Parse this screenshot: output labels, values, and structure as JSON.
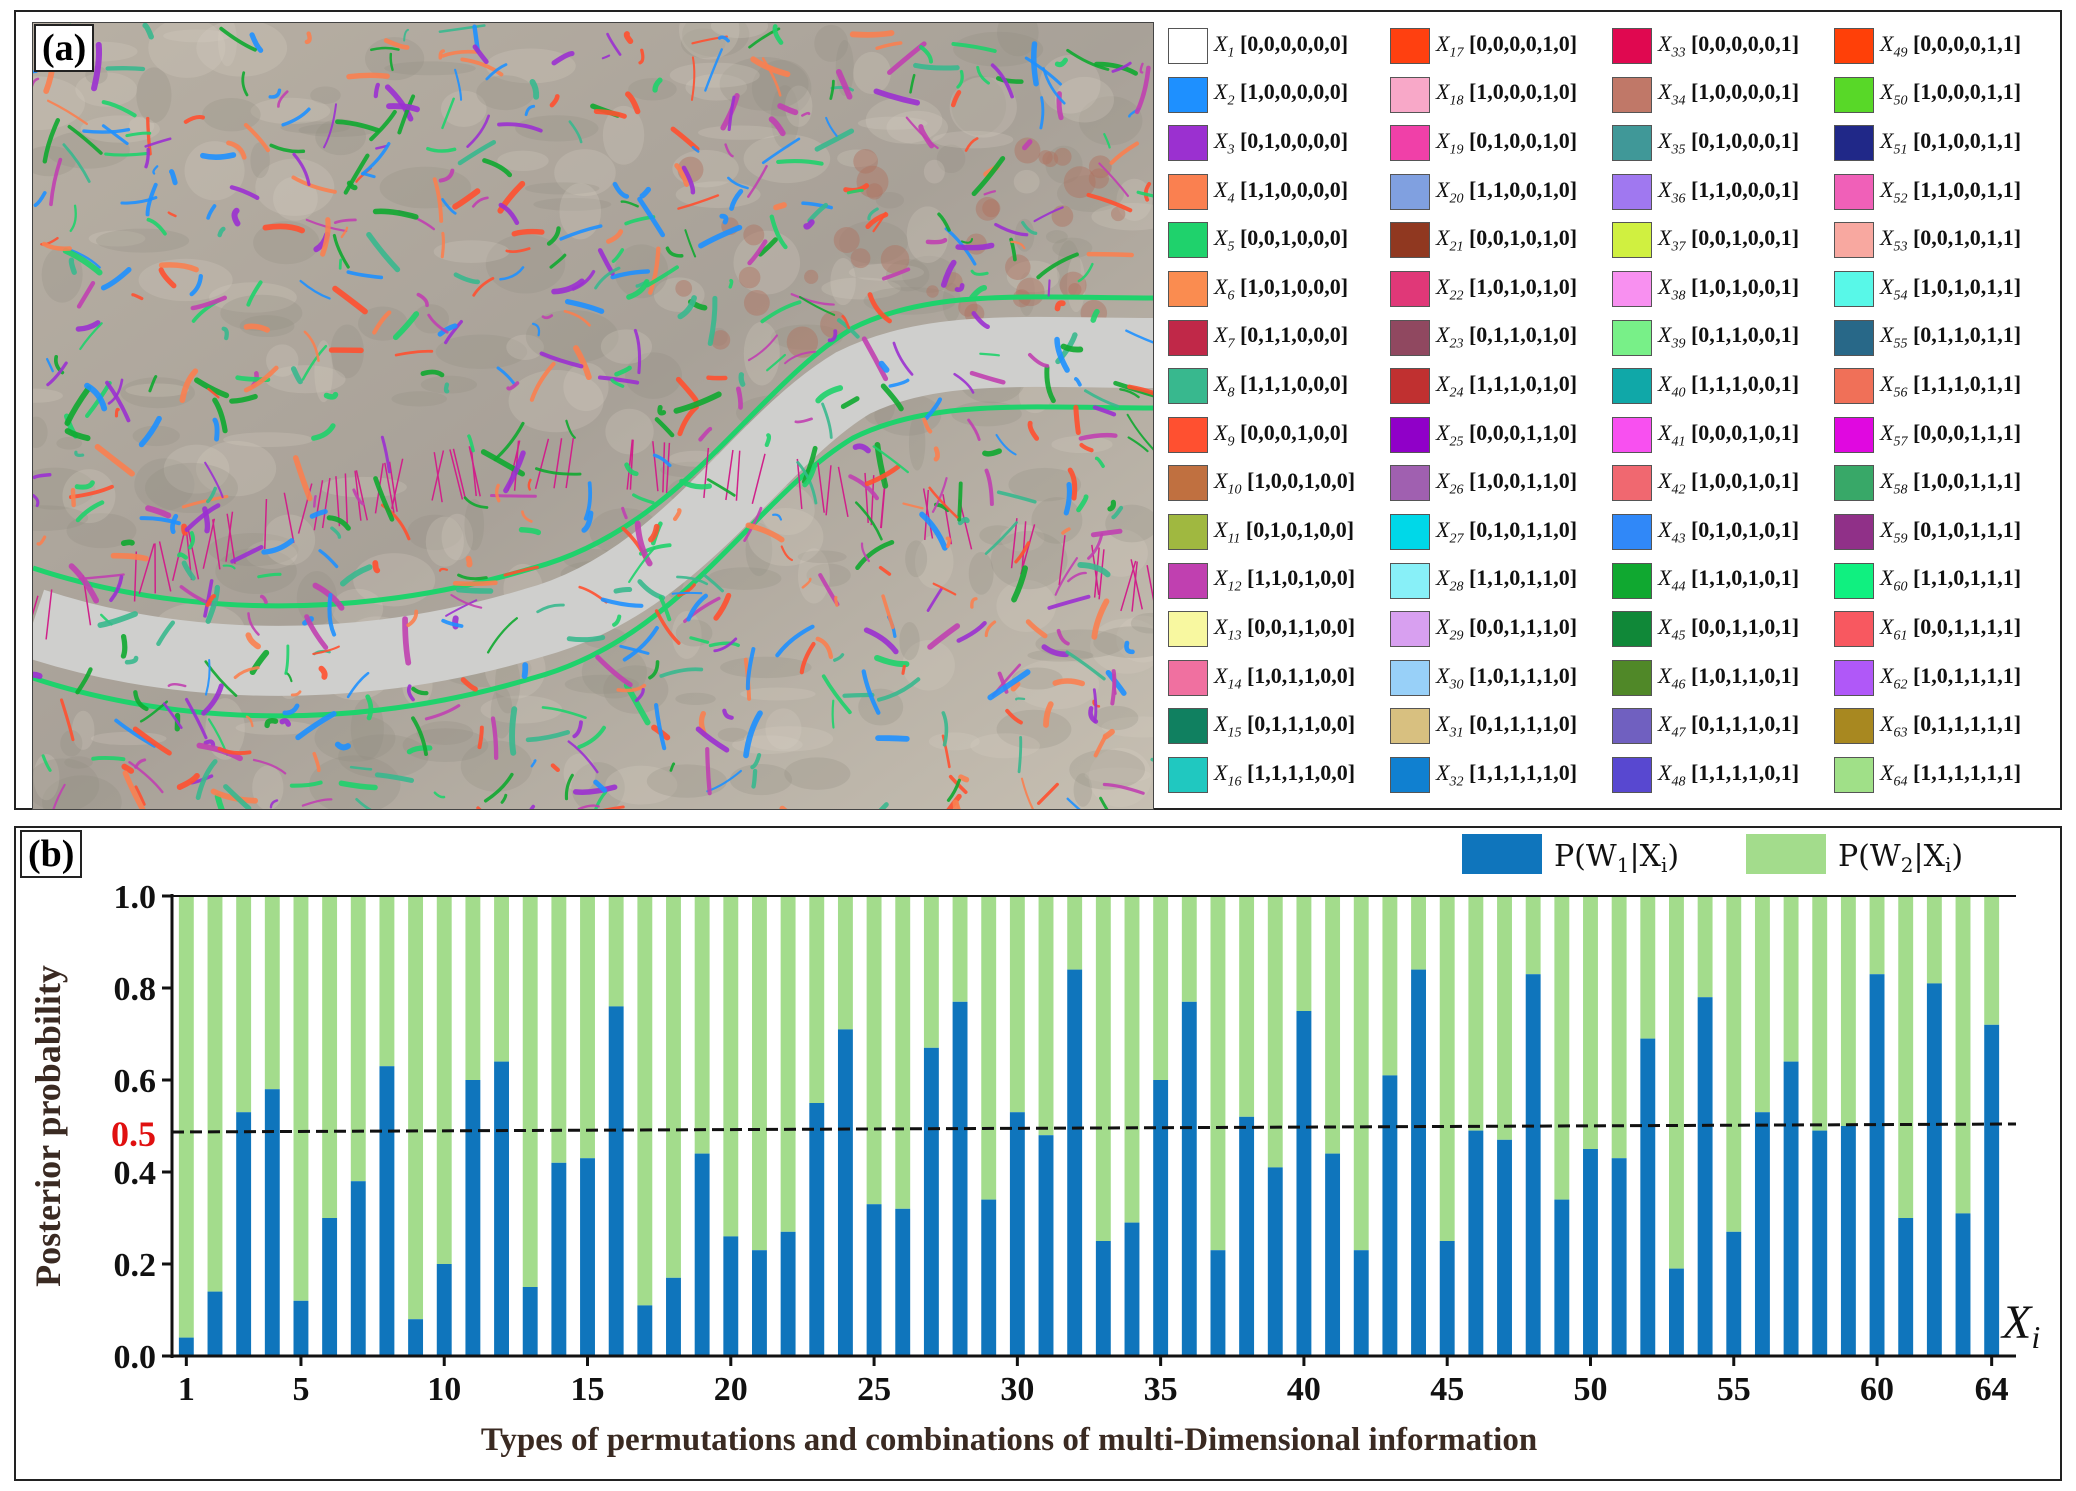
{
  "panel_a": {
    "label": "(a)",
    "legend": [
      {
        "id": "1",
        "code": "[0,0,0,0,0,0]",
        "color": "#ffffff"
      },
      {
        "id": "2",
        "code": "[1,0,0,0,0,0]",
        "color": "#1e90ff"
      },
      {
        "id": "3",
        "code": "[0,1,0,0,0,0]",
        "color": "#9b30d0"
      },
      {
        "id": "4",
        "code": "[1,1,0,0,0,0]",
        "color": "#fa8050"
      },
      {
        "id": "5",
        "code": "[0,0,1,0,0,0]",
        "color": "#1fd26c"
      },
      {
        "id": "6",
        "code": "[1,0,1,0,0,0]",
        "color": "#fa8c50"
      },
      {
        "id": "7",
        "code": "[0,1,1,0,0,0]",
        "color": "#c02848"
      },
      {
        "id": "8",
        "code": "[1,1,1,0,0,0]",
        "color": "#38b88e"
      },
      {
        "id": "9",
        "code": "[0,0,0,1,0,0]",
        "color": "#ff5030"
      },
      {
        "id": "10",
        "code": "[1,0,0,1,0,0]",
        "color": "#c07040"
      },
      {
        "id": "11",
        "code": "[0,1,0,1,0,0]",
        "color": "#a0b840"
      },
      {
        "id": "12",
        "code": "[1,1,0,1,0,0]",
        "color": "#c040b0"
      },
      {
        "id": "13",
        "code": "[0,0,1,1,0,0]",
        "color": "#f8f8a0"
      },
      {
        "id": "14",
        "code": "[1,0,1,1,0,0]",
        "color": "#f070a0"
      },
      {
        "id": "15",
        "code": "[0,1,1,1,0,0]",
        "color": "#108060"
      },
      {
        "id": "16",
        "code": "[1,1,1,1,0,0]",
        "color": "#20c8c0"
      },
      {
        "id": "17",
        "code": "[0,0,0,0,1,0]",
        "color": "#ff4010"
      },
      {
        "id": "18",
        "code": "[1,0,0,0,1,0]",
        "color": "#f8a8c8"
      },
      {
        "id": "19",
        "code": "[0,1,0,0,1,0]",
        "color": "#f040a8"
      },
      {
        "id": "20",
        "code": "[1,1,0,0,1,0]",
        "color": "#80a0e0"
      },
      {
        "id": "21",
        "code": "[0,0,1,0,1,0]",
        "color": "#903820"
      },
      {
        "id": "22",
        "code": "[1,0,1,0,1,0]",
        "color": "#e03878"
      },
      {
        "id": "23",
        "code": "[0,1,1,0,1,0]",
        "color": "#904860"
      },
      {
        "id": "24",
        "code": "[1,1,1,0,1,0]",
        "color": "#c03030"
      },
      {
        "id": "25",
        "code": "[0,0,0,1,1,0]",
        "color": "#9000c8"
      },
      {
        "id": "26",
        "code": "[1,0,0,1,1,0]",
        "color": "#a060b0"
      },
      {
        "id": "27",
        "code": "[0,1,0,1,1,0]",
        "color": "#00d8e8"
      },
      {
        "id": "28",
        "code": "[1,1,0,1,1,0]",
        "color": "#88f0f8"
      },
      {
        "id": "29",
        "code": "[0,0,1,1,1,0]",
        "color": "#d8a0f0"
      },
      {
        "id": "30",
        "code": "[1,0,1,1,1,0]",
        "color": "#98d0f8"
      },
      {
        "id": "31",
        "code": "[0,1,1,1,1,0]",
        "color": "#d8c080"
      },
      {
        "id": "32",
        "code": "[1,1,1,1,1,0]",
        "color": "#1080d0"
      },
      {
        "id": "33",
        "code": "[0,0,0,0,0,1]",
        "color": "#e00850"
      },
      {
        "id": "34",
        "code": "[1,0,0,0,0,1]",
        "color": "#c07868"
      },
      {
        "id": "35",
        "code": "[0,1,0,0,0,1]",
        "color": "#409898"
      },
      {
        "id": "36",
        "code": "[1,1,0,0,0,1]",
        "color": "#a078f0"
      },
      {
        "id": "37",
        "code": "[0,0,1,0,0,1]",
        "color": "#d0f040"
      },
      {
        "id": "38",
        "code": "[1,0,1,0,0,1]",
        "color": "#f890f0"
      },
      {
        "id": "39",
        "code": "[0,1,1,0,0,1]",
        "color": "#78f088"
      },
      {
        "id": "40",
        "code": "[1,1,1,0,0,1]",
        "color": "#10a8a8"
      },
      {
        "id": "41",
        "code": "[0,0,0,1,0,1]",
        "color": "#f850f0"
      },
      {
        "id": "42",
        "code": "[1,0,0,1,0,1]",
        "color": "#f06870"
      },
      {
        "id": "43",
        "code": "[0,1,0,1,0,1]",
        "color": "#3088f8"
      },
      {
        "id": "44",
        "code": "[1,1,0,1,0,1]",
        "color": "#10a830"
      },
      {
        "id": "45",
        "code": "[0,0,1,1,0,1]",
        "color": "#108838"
      },
      {
        "id": "46",
        "code": "[1,0,1,1,0,1]",
        "color": "#508828"
      },
      {
        "id": "47",
        "code": "[0,1,1,1,0,1]",
        "color": "#7060c0"
      },
      {
        "id": "48",
        "code": "[1,1,1,1,0,1]",
        "color": "#5848d0"
      },
      {
        "id": "49",
        "code": "[0,0,0,0,1,1]",
        "color": "#ff4008"
      },
      {
        "id": "50",
        "code": "[1,0,0,0,1,1]",
        "color": "#58d828"
      },
      {
        "id": "51",
        "code": "[0,1,0,0,1,1]",
        "color": "#202888"
      },
      {
        "id": "52",
        "code": "[1,1,0,0,1,1]",
        "color": "#f060b8"
      },
      {
        "id": "53",
        "code": "[0,0,1,0,1,1]",
        "color": "#f8a8a0"
      },
      {
        "id": "54",
        "code": "[1,0,1,0,1,1]",
        "color": "#58f8e8"
      },
      {
        "id": "55",
        "code": "[0,1,1,0,1,1]",
        "color": "#286888"
      },
      {
        "id": "56",
        "code": "[1,1,1,0,1,1]",
        "color": "#f07058"
      },
      {
        "id": "57",
        "code": "[0,0,0,1,1,1]",
        "color": "#e008e0"
      },
      {
        "id": "58",
        "code": "[1,0,0,1,1,1]",
        "color": "#38a868"
      },
      {
        "id": "59",
        "code": "[0,1,0,1,1,1]",
        "color": "#903088"
      },
      {
        "id": "60",
        "code": "[1,1,0,1,1,1]",
        "color": "#10f080"
      },
      {
        "id": "61",
        "code": "[0,0,1,1,1,1]",
        "color": "#f85860"
      },
      {
        "id": "62",
        "code": "[1,0,1,1,1,1]",
        "color": "#b058f8"
      },
      {
        "id": "63",
        "code": "[0,1,1,1,1,1]",
        "color": "#a88820"
      },
      {
        "id": "64",
        "code": "[1,1,1,1,1,1]",
        "color": "#a0e088"
      }
    ]
  },
  "panel_b": {
    "label": "(b)",
    "threshold_label": "0.5",
    "x_axis_symbol": "X",
    "x_axis_subscript": "i"
  },
  "chart_data": {
    "type": "bar",
    "stacked": true,
    "title": "",
    "xlabel": "Types of permutations and combinations of multi-Dimensional information",
    "ylabel": "Posterior probability",
    "ylim": [
      0,
      1.0
    ],
    "yticks": [
      "0.0",
      "0.2",
      "0.4",
      "0.6",
      "0.8",
      "1.0"
    ],
    "xticks": [
      "1",
      "5",
      "10",
      "15",
      "20",
      "25",
      "30",
      "35",
      "40",
      "45",
      "50",
      "55",
      "60",
      "64"
    ],
    "threshold": 0.5,
    "legend_position": "top-right",
    "categories": [
      1,
      2,
      3,
      4,
      5,
      6,
      7,
      8,
      9,
      10,
      11,
      12,
      13,
      14,
      15,
      16,
      17,
      18,
      19,
      20,
      21,
      22,
      23,
      24,
      25,
      26,
      27,
      28,
      29,
      30,
      31,
      32,
      33,
      34,
      35,
      36,
      37,
      38,
      39,
      40,
      41,
      42,
      43,
      44,
      45,
      46,
      47,
      48,
      49,
      50,
      51,
      52,
      53,
      54,
      55,
      56,
      57,
      58,
      59,
      60,
      61,
      62,
      63,
      64
    ],
    "series": [
      {
        "name": "P(W1|Xi)",
        "color": "#0f75bc",
        "values": [
          0.04,
          0.14,
          0.53,
          0.58,
          0.12,
          0.3,
          0.38,
          0.63,
          0.08,
          0.2,
          0.6,
          0.64,
          0.15,
          0.42,
          0.43,
          0.76,
          0.11,
          0.17,
          0.44,
          0.26,
          0.23,
          0.27,
          0.55,
          0.71,
          0.33,
          0.32,
          0.67,
          0.77,
          0.34,
          0.53,
          0.48,
          0.84,
          0.25,
          0.29,
          0.6,
          0.77,
          0.23,
          0.52,
          0.41,
          0.75,
          0.44,
          0.23,
          0.61,
          0.84,
          0.25,
          0.49,
          0.47,
          0.83,
          0.34,
          0.45,
          0.43,
          0.69,
          0.19,
          0.78,
          0.27,
          0.53,
          0.64,
          0.49,
          0.5,
          0.83,
          0.3,
          0.81,
          0.31,
          0.72
        ]
      },
      {
        "name": "P(W2|Xi)",
        "color": "#a3dc8c",
        "values": [
          0.96,
          0.86,
          0.47,
          0.42,
          0.88,
          0.7,
          0.62,
          0.37,
          0.92,
          0.8,
          0.4,
          0.36,
          0.85,
          0.58,
          0.57,
          0.24,
          0.89,
          0.83,
          0.56,
          0.74,
          0.77,
          0.73,
          0.45,
          0.29,
          0.67,
          0.68,
          0.33,
          0.23,
          0.66,
          0.47,
          0.52,
          0.16,
          0.75,
          0.71,
          0.4,
          0.23,
          0.77,
          0.48,
          0.59,
          0.25,
          0.56,
          0.77,
          0.39,
          0.16,
          0.75,
          0.51,
          0.53,
          0.17,
          0.66,
          0.55,
          0.57,
          0.31,
          0.81,
          0.22,
          0.73,
          0.47,
          0.36,
          0.51,
          0.5,
          0.17,
          0.7,
          0.19,
          0.69,
          0.28
        ]
      }
    ]
  }
}
